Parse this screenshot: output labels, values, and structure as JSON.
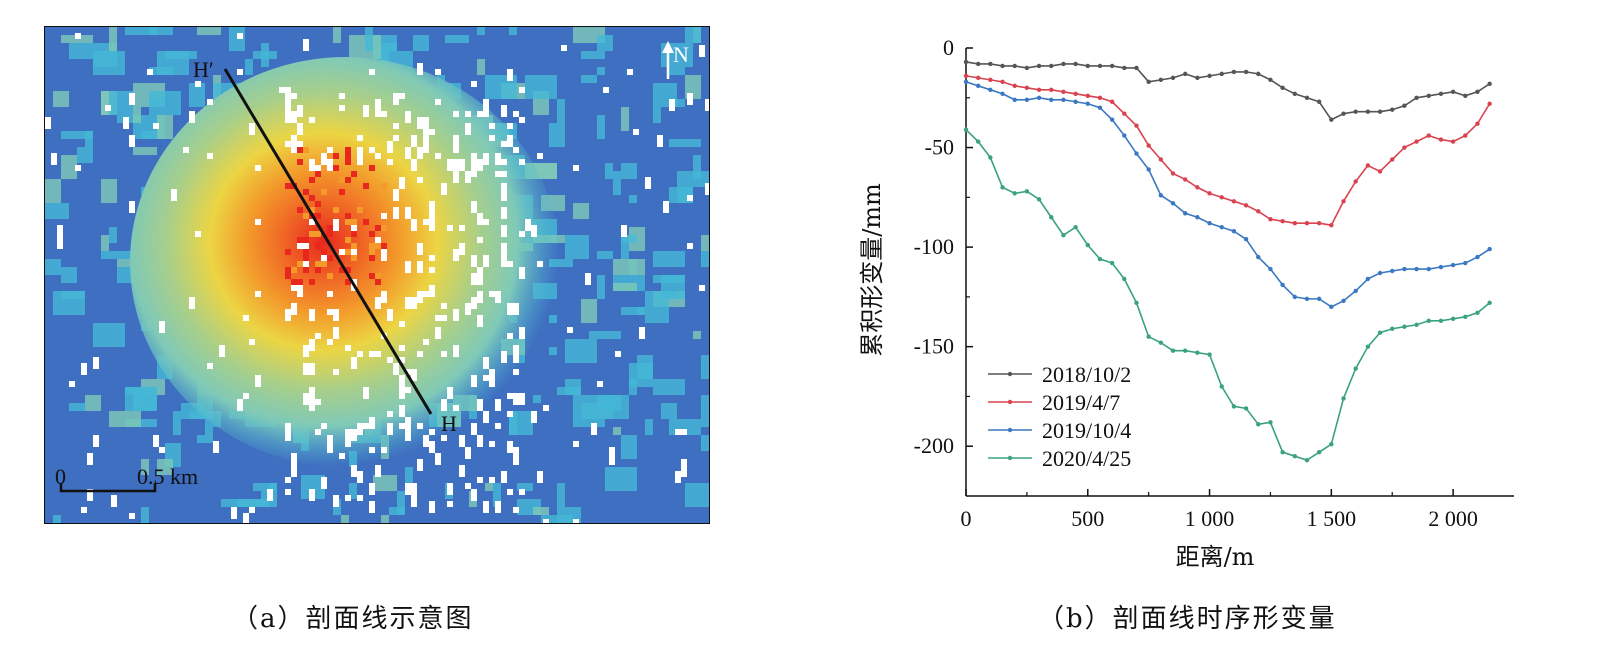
{
  "panel_a": {
    "caption": "（a）剖面线示意图",
    "point_start": "H′",
    "point_end": "H",
    "north_label": "N",
    "scale_zero": "0",
    "scale_max": "0.5 km",
    "colors": {
      "background": "#3f6fc0",
      "cyan": "#45b8d6",
      "light_teal": "#7fc9b8",
      "green": "#a8cf8a",
      "yellow": "#ecd543",
      "orange": "#f39a2b",
      "red": "#e8281e",
      "white": "#ffffff"
    }
  },
  "panel_b": {
    "caption": "（b）剖面线时序形变量"
  },
  "chart_data": {
    "type": "line",
    "xlabel": "距离/m",
    "ylabel": "累积形变量/mm",
    "xlim": [
      0,
      2250
    ],
    "ylim": [
      -225,
      0
    ],
    "xticks": [
      0,
      500,
      1000,
      1500,
      2000
    ],
    "xtick_labels": [
      "0",
      "500",
      "1 000",
      "1 500",
      "2 000"
    ],
    "yticks": [
      0,
      -50,
      -100,
      -150,
      -200
    ],
    "ytick_labels": [
      "0",
      "-50",
      "-100",
      "-150",
      "-200"
    ],
    "legend_position": "bottom-left",
    "x": [
      0,
      50,
      100,
      150,
      200,
      250,
      300,
      350,
      400,
      450,
      500,
      550,
      600,
      650,
      700,
      750,
      800,
      850,
      900,
      950,
      1000,
      1050,
      1100,
      1150,
      1200,
      1250,
      1300,
      1350,
      1400,
      1450,
      1500,
      1550,
      1600,
      1650,
      1700,
      1750,
      1800,
      1850,
      1900,
      1950,
      2000,
      2050,
      2100,
      2150
    ],
    "series": [
      {
        "name": "2018/10/2",
        "color": "#555555",
        "values": [
          -7,
          -8,
          -8,
          -9,
          -9,
          -10,
          -9,
          -9,
          -8,
          -8,
          -9,
          -9,
          -9,
          -10,
          -10,
          -17,
          -16,
          -15,
          -13,
          -15,
          -14,
          -13,
          -12,
          -12,
          -13,
          -16,
          -20,
          -23,
          -25,
          -27,
          -36,
          -33,
          -32,
          -32,
          -32,
          -31,
          -29,
          -25,
          -24,
          -23,
          -22,
          -24,
          -22,
          -18
        ]
      },
      {
        "name": "2019/4/7",
        "color": "#d9434f",
        "values": [
          -14,
          -15,
          -16,
          -17,
          -19,
          -20,
          -21,
          -21,
          -22,
          -23,
          -24,
          -25,
          -27,
          -33,
          -39,
          -49,
          -56,
          -63,
          -66,
          -70,
          -73,
          -75,
          -77,
          -79,
          -82,
          -86,
          -87,
          -88,
          -88,
          -88,
          -89,
          -77,
          -67,
          -59,
          -62,
          -56,
          -50,
          -47,
          -44,
          -46,
          -47,
          -44,
          -38,
          -28
        ]
      },
      {
        "name": "2019/10/4",
        "color": "#3a78c2",
        "values": [
          -17,
          -19,
          -21,
          -23,
          -26,
          -26,
          -25,
          -26,
          -26,
          -27,
          -28,
          -30,
          -36,
          -44,
          -53,
          -61,
          -74,
          -78,
          -83,
          -85,
          -88,
          -90,
          -92,
          -96,
          -105,
          -111,
          -119,
          -125,
          -126,
          -126,
          -130,
          -127,
          -122,
          -116,
          -113,
          -112,
          -111,
          -111,
          -111,
          -110,
          -109,
          -108,
          -105,
          -101
        ]
      },
      {
        "name": "2020/4/25",
        "color": "#3aa37d",
        "values": [
          -41,
          -47,
          -55,
          -70,
          -73,
          -72,
          -76,
          -85,
          -94,
          -90,
          -99,
          -106,
          -108,
          -116,
          -128,
          -145,
          -148,
          -152,
          -152,
          -153,
          -154,
          -170,
          -180,
          -181,
          -189,
          -188,
          -203,
          -205,
          -207,
          -203,
          -199,
          -176,
          -161,
          -150,
          -143,
          -141,
          -140,
          -139,
          -137,
          -137,
          -136,
          -135,
          -133,
          -128
        ]
      }
    ]
  }
}
